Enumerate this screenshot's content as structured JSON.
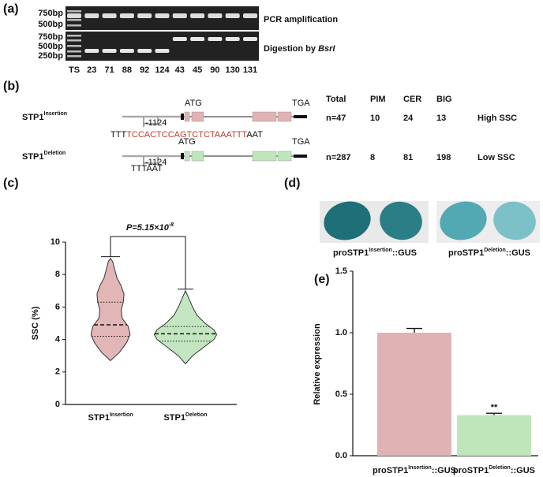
{
  "panel_labels": [
    "(a)",
    "(b)",
    "(c)",
    "(d)",
    "(e)"
  ],
  "gel": {
    "top_markers": [
      "750bp",
      "500bp"
    ],
    "top_label": "PCR amplification",
    "bottom_markers": [
      "750bp",
      "500bp",
      "250bp"
    ],
    "bottom_label": "Digestion by ",
    "bottom_enzyme": "BsrI",
    "lanes": [
      "TS",
      "23",
      "71",
      "88",
      "92",
      "124",
      "43",
      "45",
      "90",
      "130",
      "131"
    ]
  },
  "gene": {
    "insertion": {
      "name": "STP1",
      "sup": "Insertion",
      "start": "ATG",
      "stop": "TGA",
      "position": "-1124",
      "seq_prefix": "TTT",
      "seq_insert": "TCCACTCCAGTCTCTAAATTT",
      "seq_suffix": "AAT"
    },
    "deletion": {
      "name": "STP1",
      "sup": "Deletion",
      "start": "ATG",
      "stop": "TGA",
      "position": "-1124",
      "seq": "TTTAAT"
    }
  },
  "table": {
    "header": [
      "Total",
      "PIM",
      "CER",
      "BIG"
    ],
    "rows": [
      [
        "n=47",
        "10",
        "24",
        "13",
        "High SSC"
      ],
      [
        "n=287",
        "8",
        "81",
        "198",
        "Low SSC"
      ]
    ]
  },
  "gus": {
    "labels": [
      {
        "prefix": "proSTP1",
        "sup": "Insertion",
        "suffix": "::GUS"
      },
      {
        "prefix": "proSTP1",
        "sup": "Deletion",
        "suffix": "::GUS"
      }
    ]
  },
  "chart_data": [
    {
      "type": "violin",
      "y_label": "SSC (%)",
      "categories": [
        "STP1",
        "STP1"
      ],
      "category_sups": [
        "Insertion",
        "Deletion"
      ],
      "annotation": "P=5.15×10",
      "annotation_sup": "-8",
      "ylim": [
        0,
        10
      ],
      "yticks": [
        0,
        2,
        4,
        6,
        8,
        10
      ],
      "series": [
        {
          "color": "#e2b6b7",
          "q1": 4.2,
          "median": 4.9,
          "q3": 6.3,
          "density_y": [
            2.7,
            3.2,
            3.8,
            4.3,
            4.8,
            5.3,
            5.8,
            6.3,
            6.8,
            7.3,
            7.8,
            8.3,
            8.8,
            9.0
          ],
          "density": [
            0,
            0.25,
            0.45,
            0.55,
            0.5,
            0.33,
            0.3,
            0.36,
            0.38,
            0.3,
            0.18,
            0.12,
            0.06,
            0
          ]
        },
        {
          "color": "#c3e6c0",
          "q1": 3.9,
          "median": 4.35,
          "q3": 4.8,
          "density_y": [
            2.5,
            3.0,
            3.5,
            4.0,
            4.3,
            4.6,
            5.0,
            5.5,
            6.0,
            6.5,
            7.0
          ],
          "density": [
            0,
            0.2,
            0.5,
            0.8,
            0.88,
            0.8,
            0.55,
            0.32,
            0.2,
            0.1,
            0
          ]
        }
      ]
    },
    {
      "type": "bar",
      "y_label": "Relative expression",
      "categories": [
        "proSTP1",
        "proSTP1"
      ],
      "category_sups": [
        "Insertion",
        "Deletion"
      ],
      "category_suffix": "::GUS",
      "values": [
        1.0,
        0.33
      ],
      "errors": [
        0.035,
        0.015
      ],
      "annotations": [
        null,
        "**"
      ],
      "colors": [
        "#dfb3b4",
        "#bfe5bb"
      ],
      "ylim": [
        0,
        1.5
      ],
      "yticks": [
        {
          "value": 0,
          "label": "0.0"
        },
        0.5,
        {
          "value": 1,
          "label": "1.0"
        },
        1.5
      ]
    }
  ]
}
